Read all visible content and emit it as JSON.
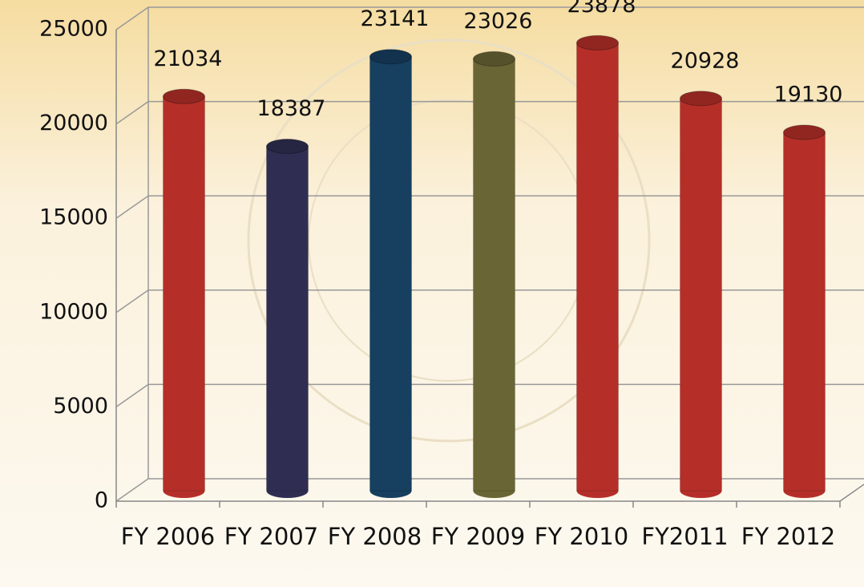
{
  "chart_data": {
    "type": "bar",
    "categories": [
      "FY 2006",
      "FY 2007",
      "FY 2008",
      "FY 2009",
      "FY 2010",
      "FY2011",
      "FY 2012"
    ],
    "values": [
      21034,
      18387,
      23141,
      23026,
      23878,
      20928,
      19130
    ],
    "colors": [
      "#b52f28",
      "#2f2e52",
      "#163f60",
      "#6a6535",
      "#b52f28",
      "#b52f28",
      "#b52f28"
    ],
    "ylim": [
      0,
      25000
    ],
    "yticks": [
      0,
      5000,
      10000,
      15000,
      20000,
      25000
    ],
    "grid": true
  }
}
